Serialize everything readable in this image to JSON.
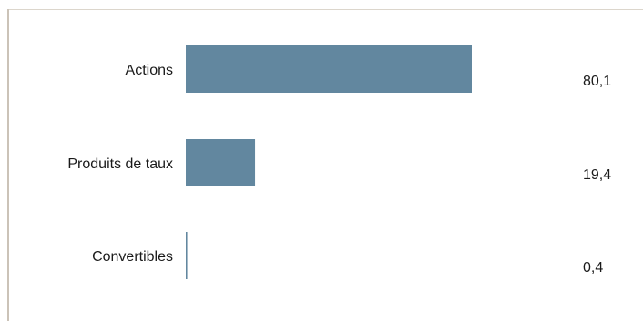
{
  "chart_data": {
    "type": "bar",
    "orientation": "horizontal",
    "categories": [
      "Actions",
      "Produits de taux",
      "Convertibles"
    ],
    "values": [
      80.1,
      19.4,
      0.4
    ],
    "value_labels": [
      "80,1",
      "19,4",
      "0,4"
    ],
    "xlim": [
      0,
      100
    ],
    "grid": false,
    "legend": "none",
    "bar_color": "#62879f"
  }
}
